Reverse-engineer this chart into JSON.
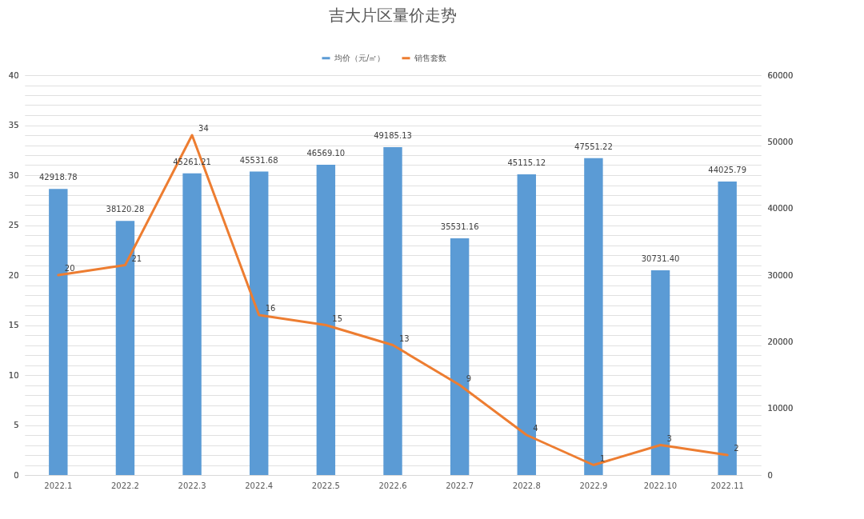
{
  "chart_data": {
    "type": "bar",
    "title": "吉大片区量价走势",
    "categories": [
      "2022.1",
      "2022.2",
      "2022.3",
      "2022.4",
      "2022.5",
      "2022.6",
      "2022.7",
      "2022.8",
      "2022.9",
      "2022.10",
      "2022.11"
    ],
    "series": [
      {
        "name": "均价（元/㎡）",
        "type": "bar",
        "axis": "y2",
        "color": "#5b9bd5",
        "values": [
          42918.78,
          38120.28,
          45261.21,
          45531.68,
          46569.1,
          49185.13,
          35531.16,
          45115.12,
          47551.22,
          30731.4,
          44025.79
        ],
        "value_labels": [
          "42918.78",
          "38120.28",
          "45261.21",
          "45531.68",
          "46569.10",
          "49185.13",
          "35531.16",
          "45115.12",
          "47551.22",
          "30731.40",
          "44025.79"
        ]
      },
      {
        "name": "销售套数",
        "type": "line",
        "color": "#ed7d31",
        "values": [
          20,
          21,
          34,
          16,
          15,
          13,
          9,
          4,
          1,
          3,
          2
        ]
      }
    ],
    "data_labels": true,
    "ylim": [
      0,
      40
    ],
    "yticks": [
      0,
      {
        "value": 1,
        "label": null
      },
      {
        "value": 2,
        "label": null
      },
      {
        "value": 3,
        "label": null
      },
      {
        "value": 4,
        "label": null
      },
      5,
      {
        "value": 6,
        "label": null
      },
      {
        "value": 7,
        "label": null
      },
      {
        "value": 8,
        "label": null
      },
      {
        "value": 9,
        "label": null
      },
      10,
      {
        "value": 11,
        "label": null
      },
      {
        "value": 12,
        "label": null
      },
      {
        "value": 13,
        "label": null
      },
      {
        "value": 14,
        "label": null
      },
      15,
      {
        "value": 16,
        "label": null
      },
      {
        "value": 17,
        "label": null
      },
      {
        "value": 18,
        "label": null
      },
      {
        "value": 19,
        "label": null
      },
      20,
      {
        "value": 21,
        "label": null
      },
      {
        "value": 22,
        "label": null
      },
      {
        "value": 23,
        "label": null
      },
      {
        "value": 24,
        "label": null
      },
      25,
      {
        "value": 26,
        "label": null
      },
      {
        "value": 27,
        "label": null
      },
      {
        "value": 28,
        "label": null
      },
      {
        "value": 29,
        "label": null
      },
      30,
      {
        "value": 31,
        "label": null
      },
      {
        "value": 32,
        "label": null
      },
      {
        "value": 33,
        "label": null
      },
      {
        "value": 34,
        "label": null
      },
      35,
      {
        "value": 36,
        "label": null
      },
      {
        "value": 37,
        "label": null
      },
      {
        "value": 38,
        "label": null
      },
      {
        "value": 39,
        "label": null
      },
      40
    ],
    "y2lim": [
      0,
      60000
    ],
    "y2ticks": [
      0,
      10000,
      20000,
      30000,
      40000,
      50000,
      60000
    ],
    "grid": "y",
    "legend": "top",
    "marker": "none",
    "line_style": "solid"
  }
}
